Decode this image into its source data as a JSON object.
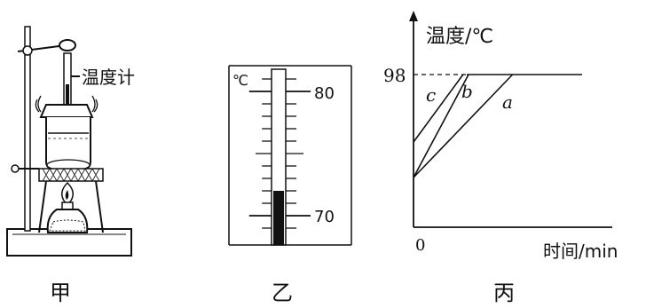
{
  "apparatus": {
    "thermometer_label": "温度计",
    "caption": "甲"
  },
  "thermometer_scale": {
    "unit_label": "℃",
    "upper_label": "80",
    "lower_label": "70",
    "reading": 72,
    "caption": "乙"
  },
  "graph": {
    "ylabel": "温度/℃",
    "xlabel": "时间/min",
    "origin_label": "0",
    "boiling_label": "98",
    "curve_labels": {
      "c": "c",
      "b": "b",
      "a": "a"
    },
    "caption": "丙"
  },
  "chart_data": {
    "type": "line",
    "xlabel": "时间/min",
    "ylabel": "温度/℃",
    "boiling_point": 98,
    "series": [
      {
        "name": "c",
        "points": [
          [
            0,
            60
          ],
          [
            0.9,
            98
          ],
          [
            3.0,
            98
          ]
        ]
      },
      {
        "name": "b",
        "points": [
          [
            0,
            40
          ],
          [
            1.0,
            98
          ],
          [
            3.0,
            98
          ]
        ]
      },
      {
        "name": "a",
        "points": [
          [
            0,
            40
          ],
          [
            1.8,
            98
          ],
          [
            3.0,
            98
          ]
        ]
      }
    ]
  }
}
